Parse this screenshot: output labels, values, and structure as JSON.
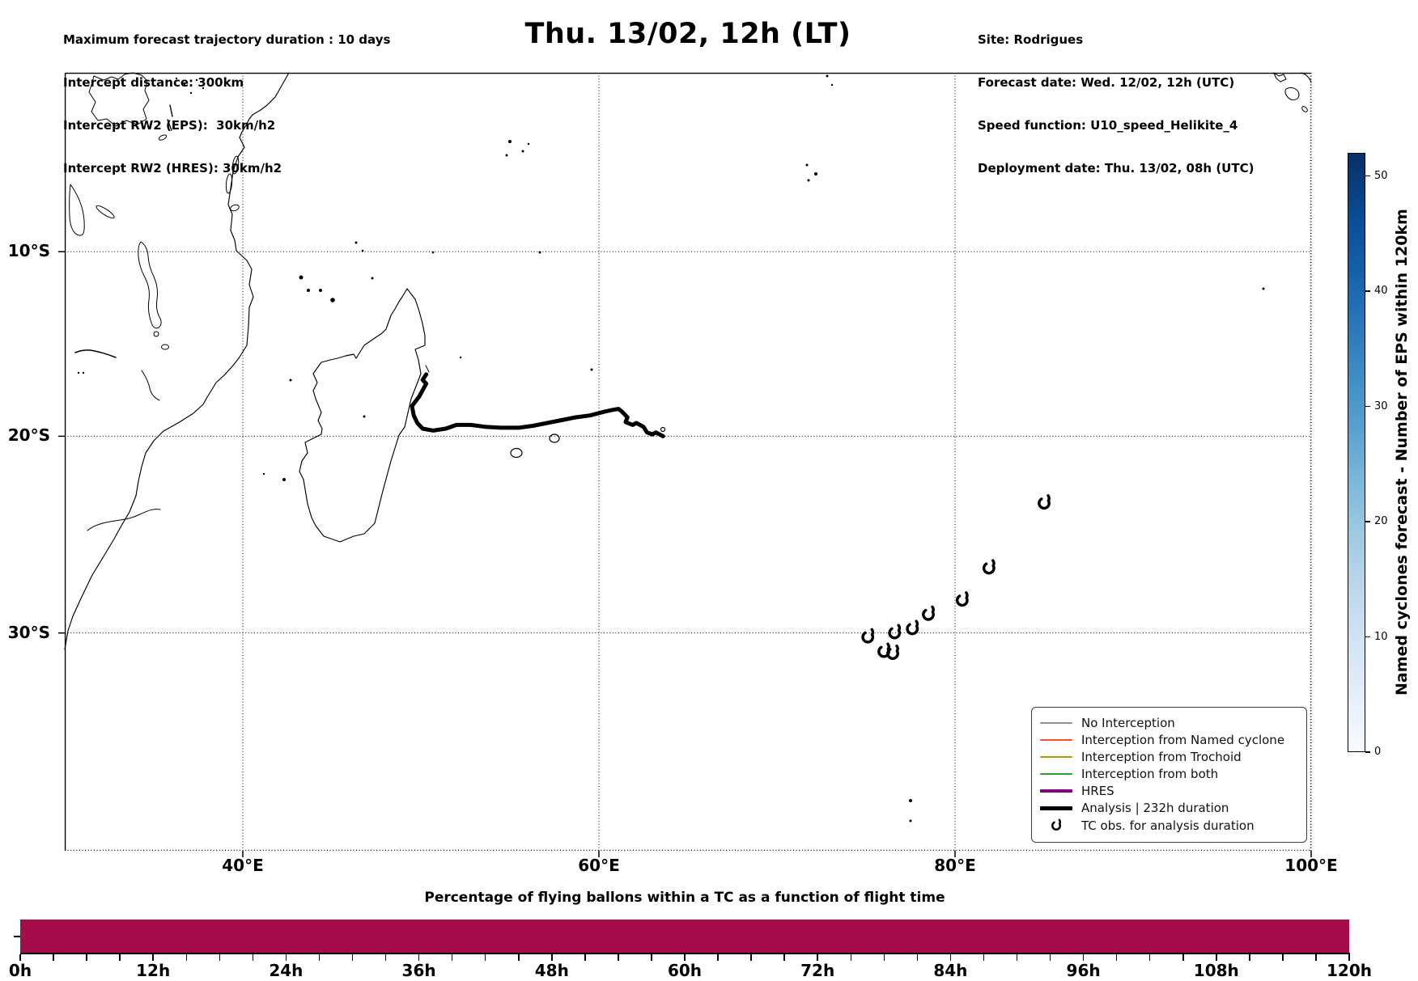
{
  "header": {
    "left_lines": [
      "Maximum forecast trajectory duration : 10 days",
      "Intercept distance: 300km",
      "Intercept RW2 (EPS):  30km/h2",
      "Intercept RW2 (HRES): 30km/h2"
    ],
    "title": "Thu. 13/02, 12h (LT)",
    "right_lines": [
      "Site: Rodrigues",
      "Forecast date: Wed. 12/02, 12h (UTC)",
      "Speed function: U10_speed_Helikite_4",
      "Deployment date: Thu. 13/02, 08h (UTC)"
    ]
  },
  "map": {
    "x_ticks": [
      {
        "label": "40°E",
        "lon": 40
      },
      {
        "label": "60°E",
        "lon": 60
      },
      {
        "label": "80°E",
        "lon": 80
      },
      {
        "label": "100°E",
        "lon": 100
      }
    ],
    "y_ticks": [
      {
        "label": "10°S",
        "lat": -10
      },
      {
        "label": "20°S",
        "lat": -20
      },
      {
        "label": "30°S",
        "lat": -30
      }
    ]
  },
  "legend": {
    "items": [
      {
        "label": "No Interception",
        "color": "#909090",
        "line_width": 1.8,
        "marker": "line"
      },
      {
        "label": "Interception from Named cyclone",
        "color": "#ff5026",
        "line_width": 1.8,
        "marker": "line"
      },
      {
        "label": "Interception from Trochoid",
        "color": "#a39a00",
        "line_width": 1.8,
        "marker": "line"
      },
      {
        "label": "Interception from both",
        "color": "#2aa12e",
        "line_width": 1.8,
        "marker": "line"
      },
      {
        "label": "HRES",
        "color": "#800080",
        "line_width": 4.5,
        "marker": "line"
      },
      {
        "label": "Analysis | 232h duration",
        "color": "#000000",
        "line_width": 5,
        "marker": "line"
      },
      {
        "label": "TC obs. for analysis duration",
        "color": "#000000",
        "marker": "tc-symbol"
      }
    ]
  },
  "colorbar": {
    "label": "Named cyclones forecast - Number of EPS within 120km",
    "vmin": 0,
    "vmax": 52,
    "ticks": [
      {
        "label": "0",
        "value": 0
      },
      {
        "label": "10",
        "value": 10
      },
      {
        "label": "20",
        "value": 20
      },
      {
        "label": "30",
        "value": 30
      },
      {
        "label": "40",
        "value": 40
      },
      {
        "label": "50",
        "value": 50
      }
    ]
  },
  "bottom_chart": {
    "title": "Percentage of flying ballons within a TC as a function of flight time",
    "x_tick_labels": [
      "0h",
      "12h",
      "24h",
      "36h",
      "48h",
      "60h",
      "72h",
      "84h",
      "96h",
      "108h",
      "120h"
    ],
    "bar_color": "#a60c49"
  },
  "chart_data": {
    "type": "map+bar",
    "map": {
      "projection": "mercator",
      "lon_range": [
        30,
        100
      ],
      "lat_range": [
        -40,
        0
      ],
      "gridline_lons": [
        40,
        60,
        80,
        100
      ],
      "gridline_lats": [
        -10,
        -20,
        -30
      ],
      "analysis_track_label": "Analysis | 232h duration",
      "analysis_track_lonlat": [
        [
          50.3,
          -16.7
        ],
        [
          50.1,
          -17.0
        ],
        [
          50.3,
          -17.2
        ],
        [
          49.9,
          -17.9
        ],
        [
          49.5,
          -18.4
        ],
        [
          49.6,
          -18.9
        ],
        [
          49.8,
          -19.3
        ],
        [
          50.1,
          -19.6
        ],
        [
          50.7,
          -19.7
        ],
        [
          51.4,
          -19.6
        ],
        [
          52.0,
          -19.4
        ],
        [
          52.8,
          -19.4
        ],
        [
          53.6,
          -19.5
        ],
        [
          54.5,
          -19.55
        ],
        [
          55.5,
          -19.55
        ],
        [
          56.3,
          -19.45
        ],
        [
          57.1,
          -19.3
        ],
        [
          57.9,
          -19.15
        ],
        [
          58.7,
          -19.0
        ],
        [
          59.5,
          -18.9
        ],
        [
          60.3,
          -18.7
        ],
        [
          60.8,
          -18.6
        ],
        [
          61.1,
          -18.55
        ],
        [
          61.3,
          -18.7
        ],
        [
          61.6,
          -19.0
        ],
        [
          61.5,
          -19.25
        ],
        [
          61.9,
          -19.4
        ],
        [
          62.1,
          -19.3
        ],
        [
          62.5,
          -19.5
        ],
        [
          62.7,
          -19.8
        ],
        [
          63.0,
          -19.9
        ],
        [
          63.2,
          -19.8
        ],
        [
          63.4,
          -19.9
        ],
        [
          63.6,
          -20.0
        ]
      ],
      "tc_obs_label": "TC obs. for analysis duration",
      "tc_obs_lonlat": [
        [
          85.0,
          -23.5
        ],
        [
          81.9,
          -26.8
        ],
        [
          80.4,
          -28.4
        ],
        [
          78.5,
          -29.1
        ],
        [
          77.6,
          -29.8
        ],
        [
          76.6,
          -30.0
        ],
        [
          75.1,
          -30.2
        ],
        [
          76.0,
          -30.9
        ],
        [
          76.5,
          -31.0
        ]
      ]
    },
    "colorbar": {
      "vmin": 0,
      "vmax": 52,
      "tick_values": [
        0,
        10,
        20,
        30,
        40,
        50
      ]
    },
    "bar": {
      "type": "bar",
      "x_hours_range": [
        0,
        120
      ],
      "major_tick_step_h": 12,
      "minor_tick_step_h": 3,
      "uniform_value_percent": 100,
      "note": "single flat bar spanning 0h-120h"
    }
  }
}
